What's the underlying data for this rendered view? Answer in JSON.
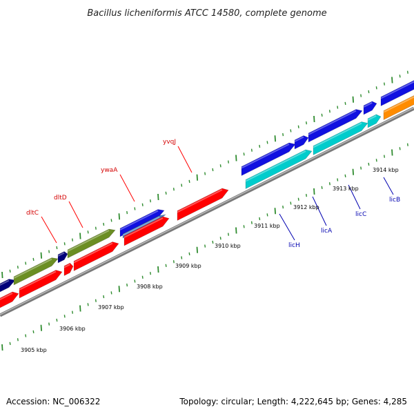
{
  "header": {
    "title": "Bacillus licheniformis ATCC 14580, complete genome"
  },
  "footer": {
    "accession": "Accession: NC_006322",
    "summary": "Topology: circular; Length: 4,222,645 bp; Genes: 4,285"
  },
  "axis": {
    "tick_labels": [
      "3905 kbp",
      "3906 kbp",
      "3907 kbp",
      "3908 kbp",
      "3909 kbp",
      "3910 kbp",
      "3911 kbp",
      "3912 kbp",
      "3913 kbp",
      "3914 kbp"
    ]
  },
  "genes": {
    "labels": [
      {
        "name": "dltC",
        "color": "red"
      },
      {
        "name": "dltD",
        "color": "red"
      },
      {
        "name": "ywaA",
        "color": "red"
      },
      {
        "name": "yvqJ",
        "color": "red"
      },
      {
        "name": "licH",
        "color": "blue"
      },
      {
        "name": "licA",
        "color": "blue"
      },
      {
        "name": "licC",
        "color": "blue"
      },
      {
        "name": "licB",
        "color": "blue"
      }
    ]
  },
  "colors": {
    "red": "#ff0000",
    "blue": "#1010e0",
    "olive": "#6b8e23",
    "navy": "#00007a",
    "cyan": "#00cccc",
    "orange": "#ff8c00",
    "tick_green": "#2e8b2e",
    "backbone": "#888888"
  }
}
